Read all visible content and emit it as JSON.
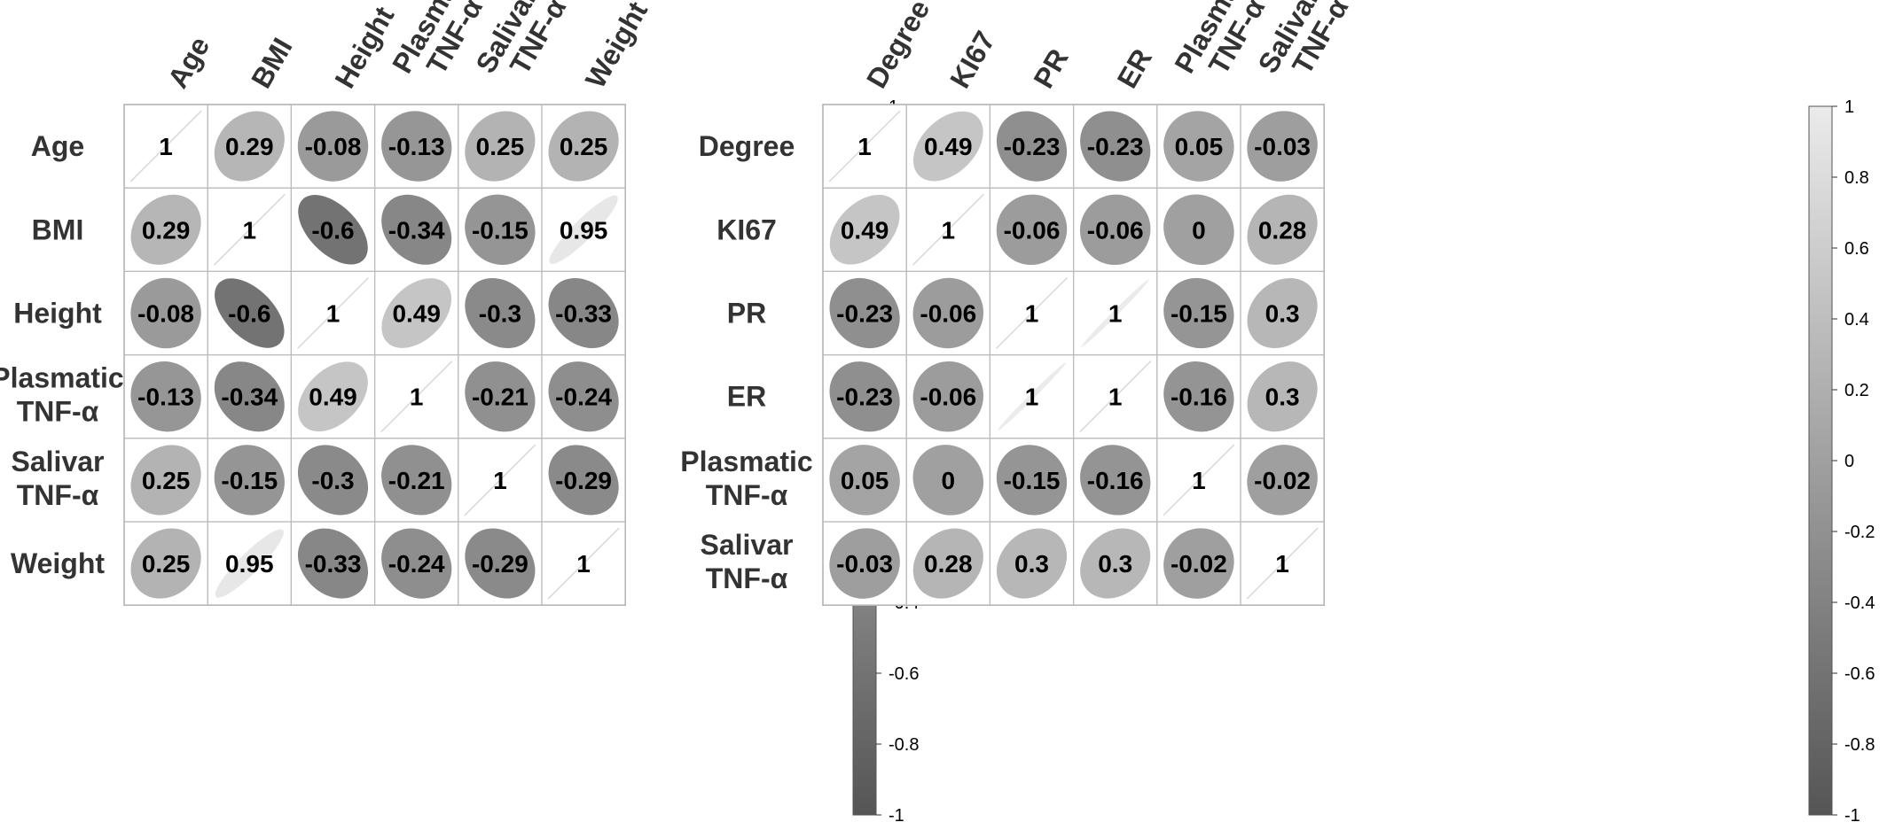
{
  "chart_data": [
    {
      "type": "heatmap",
      "variables": [
        "Age",
        "BMI",
        "Height",
        "Plasmatic TNF-α",
        "Salivar TNF-α",
        "Weight"
      ],
      "matrix": [
        [
          1,
          0.29,
          -0.08,
          -0.13,
          0.25,
          0.25
        ],
        [
          0.29,
          1,
          -0.6,
          -0.34,
          -0.15,
          0.95
        ],
        [
          -0.08,
          -0.6,
          1,
          0.49,
          -0.3,
          -0.33
        ],
        [
          -0.13,
          -0.34,
          0.49,
          1,
          -0.21,
          -0.24
        ],
        [
          0.25,
          -0.15,
          -0.3,
          -0.21,
          1,
          -0.29
        ],
        [
          0.25,
          0.95,
          -0.33,
          -0.24,
          -0.29,
          1
        ]
      ],
      "colorbar": {
        "range": [
          -1,
          1
        ],
        "ticks": [
          1,
          0.8,
          0.6,
          0.4,
          0.2,
          0,
          -0.2,
          -0.4,
          -0.6,
          -0.8,
          -1
        ]
      }
    },
    {
      "type": "heatmap",
      "variables": [
        "Degree",
        "KI67",
        "PR",
        "ER",
        "Plasmatic TNF-α",
        "Salivar TNF-α"
      ],
      "matrix": [
        [
          1,
          0.49,
          -0.23,
          -0.23,
          0.05,
          -0.03
        ],
        [
          0.49,
          1,
          -0.06,
          -0.06,
          0,
          0.28
        ],
        [
          -0.23,
          -0.06,
          1,
          1,
          -0.15,
          0.3
        ],
        [
          -0.23,
          -0.06,
          1,
          1,
          -0.16,
          0.3
        ],
        [
          0.05,
          0,
          -0.15,
          -0.16,
          1,
          -0.02
        ],
        [
          -0.03,
          0.28,
          0.3,
          0.3,
          -0.02,
          1
        ]
      ],
      "colorbar": {
        "range": [
          -1,
          1
        ],
        "ticks": [
          1,
          0.8,
          0.6,
          0.4,
          0.2,
          0,
          -0.2,
          -0.4,
          -0.6,
          -0.8,
          -1
        ]
      }
    }
  ]
}
